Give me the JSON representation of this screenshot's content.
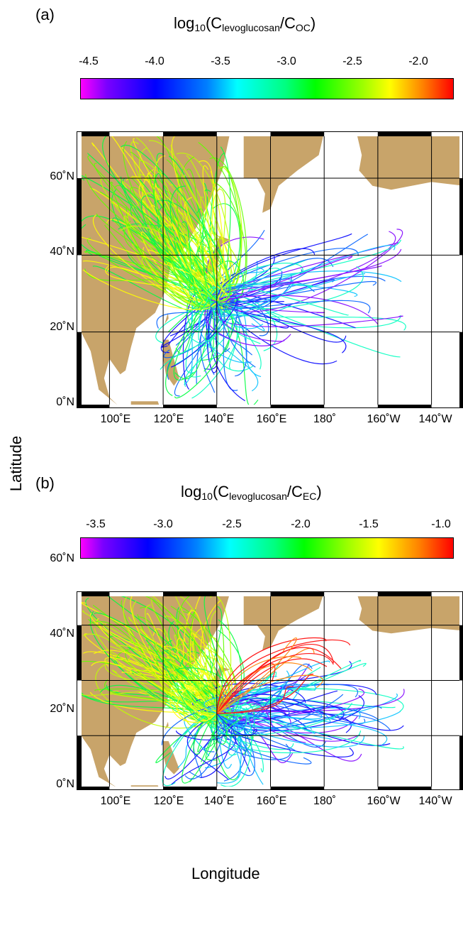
{
  "panels": [
    {
      "label": "(a)",
      "colorbar": {
        "title_prefix": "log",
        "title_base": "10",
        "title_open": "(C",
        "title_num_sub": "levoglucosan",
        "title_slash": "/C",
        "title_den_sub": "OC",
        "title_close": ")",
        "ticks": [
          "-4.5",
          "-4.0",
          "-3.5",
          "-3.0",
          "-2.5",
          "-2.0"
        ],
        "range": [
          -4.6,
          -1.7
        ],
        "colormap": "magenta-blue-cyan-green-yellow-red"
      },
      "y_ticks": [
        "60˚N",
        "40˚N",
        "20˚N",
        "0˚N"
      ],
      "x_ticks": [
        "100˚E",
        "120˚E",
        "140˚E",
        "160˚E",
        "180˚",
        "160˚W",
        "140˚W"
      ],
      "origin": {
        "lon": 140,
        "lat": 28
      }
    },
    {
      "label": "(b)",
      "colorbar": {
        "title_prefix": "log",
        "title_base": "10",
        "title_open": "(C",
        "title_num_sub": "levoglucosan",
        "title_slash": "/C",
        "title_den_sub": "EC",
        "title_close": ")",
        "ticks": [
          "-3.5",
          "-3.0",
          "-2.5",
          "-2.0",
          "-1.5",
          "-1.0"
        ],
        "range": [
          -3.6,
          -0.95
        ],
        "colormap": "magenta-blue-cyan-green-yellow-red"
      },
      "y_ticks": [
        "60˚N",
        "40˚N",
        "20˚N",
        "0˚N"
      ],
      "x_ticks": [
        "100˚E",
        "120˚E",
        "140˚E",
        "160˚E",
        "180˚",
        "160˚W",
        "140˚W"
      ],
      "origin": {
        "lon": 140,
        "lat": 28
      }
    }
  ],
  "axes": {
    "ylabel": "Latitude",
    "xlabel": "Longitude"
  },
  "map": {
    "lon_range": [
      88,
      232
    ],
    "lat_range": [
      0,
      72
    ],
    "land_color": "#c8a46a",
    "ocean_color": "#ffffff",
    "grid_color": "#000000"
  }
}
